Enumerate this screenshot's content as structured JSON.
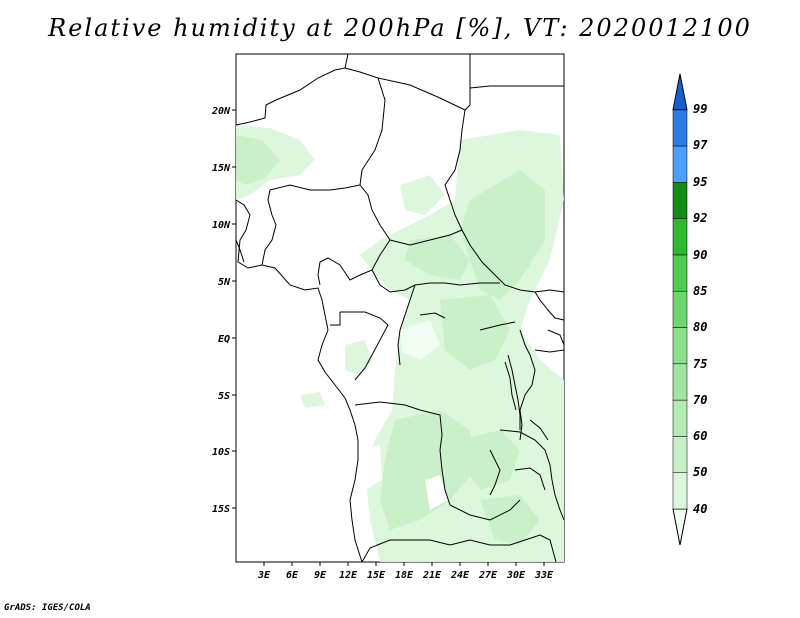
{
  "title": "Relative humidity at 200hPa [%], VT: 2020012100",
  "credit": "GrADS: IGES/COLA",
  "map": {
    "lat_labels": [
      "20N",
      "15N",
      "10N",
      "5N",
      "EQ",
      "5S",
      "10S",
      "15S"
    ],
    "lon_labels": [
      "3E",
      "6E",
      "9E",
      "12E",
      "15E",
      "18E",
      "21E",
      "24E",
      "27E",
      "30E",
      "33E"
    ]
  },
  "colorbar": {
    "levels": [
      "40",
      "50",
      "60",
      "70",
      "75",
      "80",
      "85",
      "90",
      "92",
      "95",
      "97",
      "99"
    ],
    "colors": [
      "#f0fff0",
      "#dcf7dc",
      "#c8f0c8",
      "#b4ebb4",
      "#a0e6a0",
      "#8ce08c",
      "#6ed66e",
      "#50cc50",
      "#2eb82e",
      "#148c14",
      "#4d9fff",
      "#2a7de6",
      "#1460d2"
    ]
  }
}
